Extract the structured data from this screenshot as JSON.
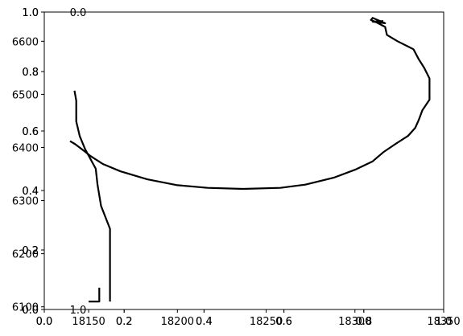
{
  "chart_data": [
    {
      "type": "axes",
      "xlim": [
        0.0,
        1.0
      ],
      "ylim": [
        0.0,
        1.0
      ],
      "x_ticks": [
        "0.0",
        "0.2",
        "0.4",
        "0.6",
        "0.8",
        "1.0"
      ],
      "y_ticks": [
        "0.0",
        "0.2",
        "0.4",
        "0.6",
        "0.8",
        "1.0"
      ],
      "grid": false
    },
    {
      "type": "axes",
      "xlim": [
        0.0,
        1.0
      ],
      "ylim": [
        0.0,
        1.0
      ],
      "x_ticks": [
        "0.0",
        "0.2",
        "0.4",
        "0.6",
        "0.8",
        "1.0"
      ],
      "y_ticks": [
        "0.0",
        "0.2",
        "0.4",
        "0.6",
        "0.8",
        "1.0"
      ],
      "grid": false
    },
    {
      "type": "line",
      "xlim": [
        18125,
        18350
      ],
      "ylim": [
        6095,
        6655
      ],
      "x_ticks": [
        "18150",
        "18200",
        "18250",
        "18300",
        "18350"
      ],
      "y_ticks": [
        "6100",
        "6200",
        "6300",
        "6400",
        "6500",
        "6600"
      ],
      "grid": false,
      "series": [
        {
          "color": "#000000",
          "x": [
            18139.5,
            18142.5,
            18148,
            18151,
            18158,
            18168,
            18183,
            18200,
            18217,
            18237,
            18258,
            18272,
            18288,
            18300,
            18310,
            18316,
            18323,
            18330,
            18334,
            18336,
            18338,
            18342,
            18342,
            18342,
            18339,
            18336,
            18333,
            18324,
            18318,
            18317,
            18312,
            18309,
            18310,
            18317,
            18310,
            18316
          ],
          "y": [
            6412,
            6406,
            6392,
            6384,
            6369,
            6355,
            6340,
            6329,
            6324,
            6322,
            6324,
            6330,
            6343,
            6358,
            6374,
            6391,
            6407,
            6422,
            6437,
            6452,
            6470,
            6490,
            6510,
            6530,
            6550,
            6566,
            6585,
            6600,
            6612,
            6627,
            6636,
            6640,
            6644,
            6634,
            6637,
            6638
          ]
        },
        {
          "color": "#000000",
          "x": [
            18162,
            18162,
            18162,
            18162,
            18162,
            18157,
            18155,
            18154,
            18148,
            18145,
            18143,
            18143,
            18142
          ],
          "y": [
            6110,
            6123,
            6162,
            6198,
            6247,
            6290,
            6330,
            6360,
            6397,
            6421,
            6449,
            6488,
            6507
          ]
        },
        {
          "color": "#000000",
          "x": [
            18150,
            18154,
            18156,
            18156
          ],
          "y": [
            6110,
            6110,
            6110,
            6136
          ]
        }
      ]
    }
  ]
}
